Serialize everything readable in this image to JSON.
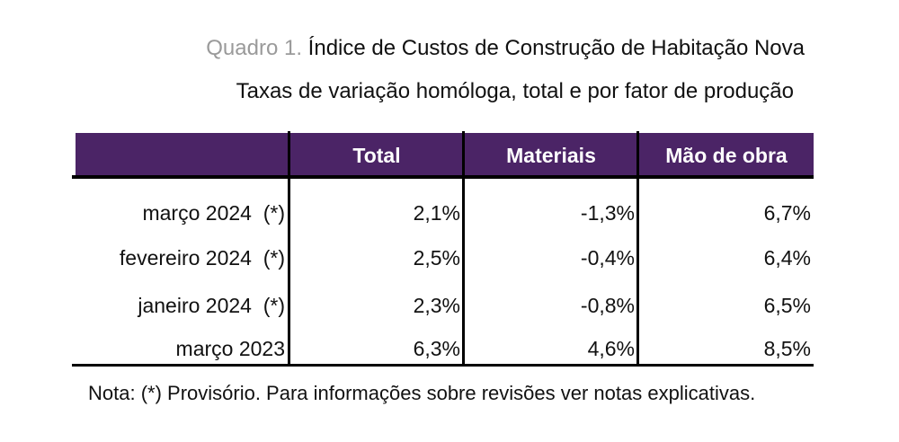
{
  "title": {
    "prefix": "Quadro 1.",
    "text": "Índice de Custos de Construção de Habitação Nova"
  },
  "subtitle": "Taxas de variação homóloga, total e por fator de produção",
  "table": {
    "headers": [
      "",
      "Total",
      "Materiais",
      "Mão de obra"
    ],
    "header_color": "#4b2466",
    "rows": [
      {
        "label": "março 2024  (*)",
        "total": "2,1%",
        "materiais": "-1,3%",
        "mao_de_obra": "6,7%"
      },
      {
        "label": "fevereiro 2024  (*)",
        "total": "2,5%",
        "materiais": "-0,4%",
        "mao_de_obra": "6,4%"
      },
      {
        "label": "janeiro 2024  (*)",
        "total": "2,3%",
        "materiais": "-0,8%",
        "mao_de_obra": "6,5%"
      },
      {
        "label": "março 2023",
        "total": "6,3%",
        "materiais": "4,6%",
        "mao_de_obra": "8,5%"
      }
    ]
  },
  "note": "Nota: (*) Provisório. Para informações sobre revisões ver notas explicativas."
}
